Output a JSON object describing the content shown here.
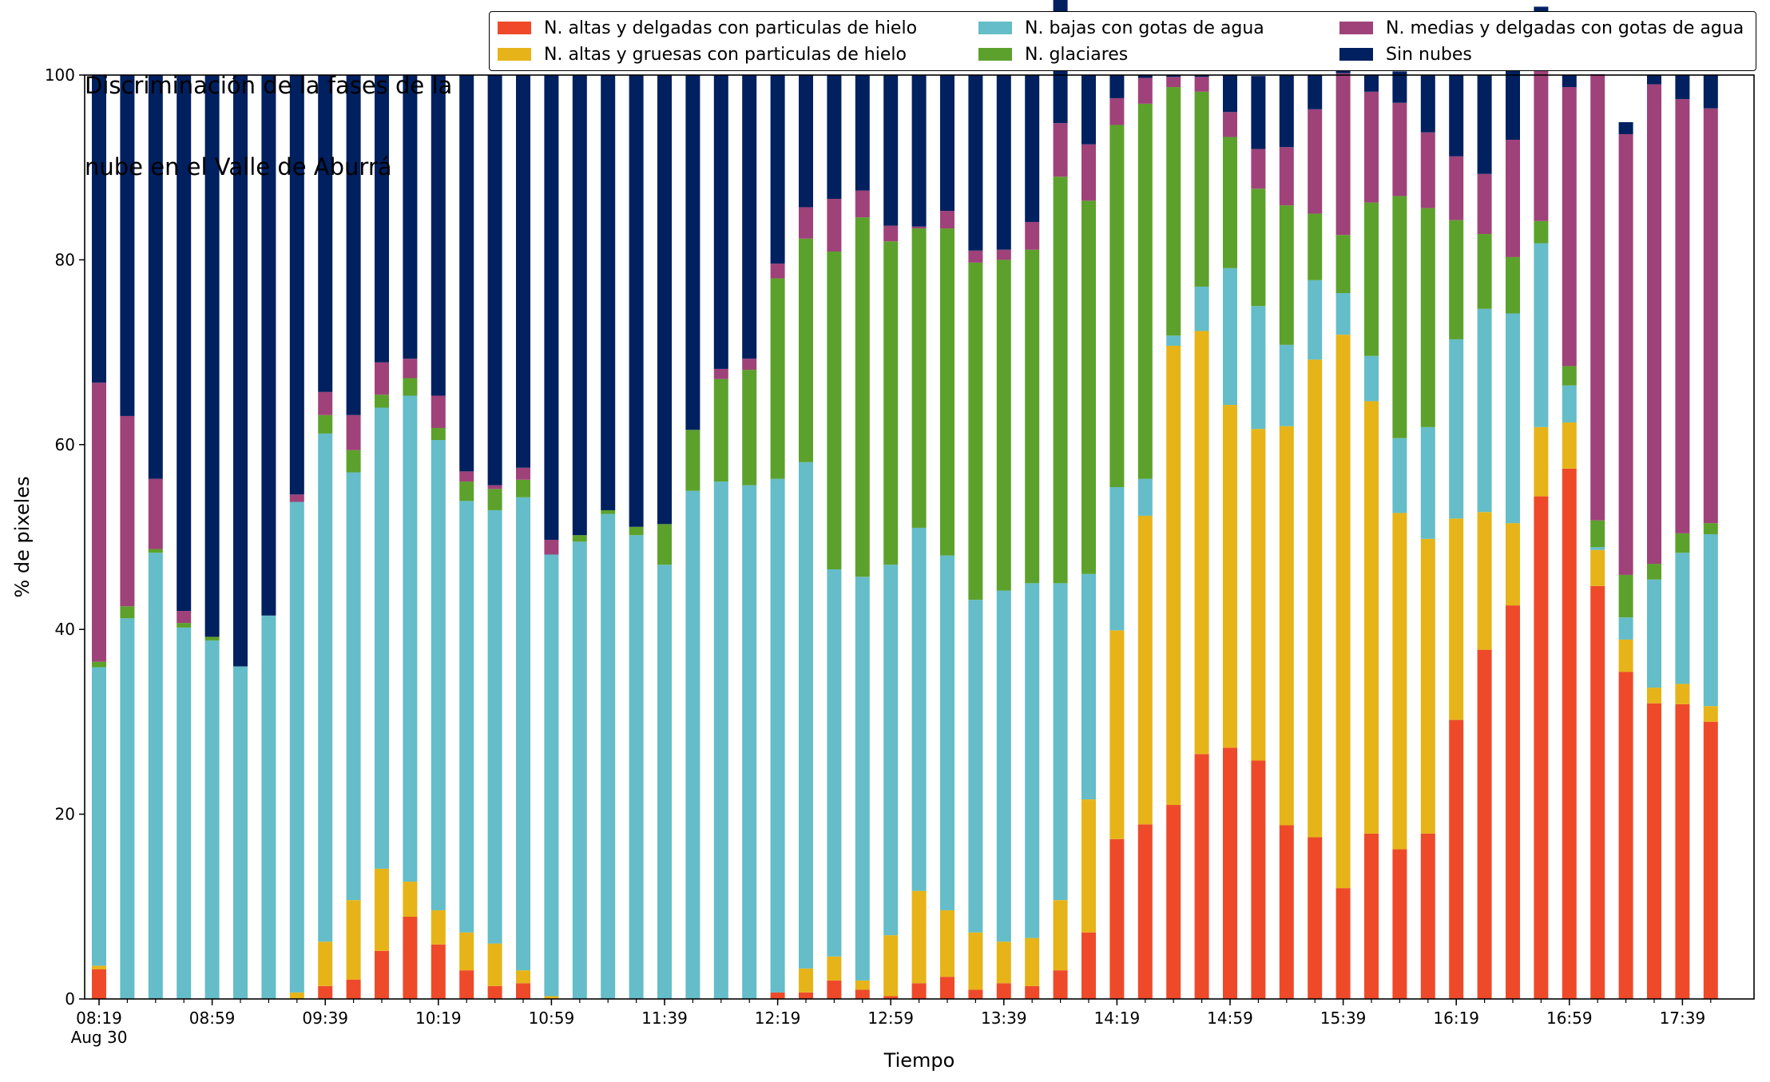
{
  "chart_data": {
    "type": "bar",
    "stacked": true,
    "title": [
      "Discriminación de la fases de la",
      "nube en el Valle de Aburrá"
    ],
    "xlabel": "Tiempo",
    "ylabel": "% de pixeles",
    "ylim": [
      0,
      100
    ],
    "yticks": [
      0,
      20,
      40,
      60,
      80,
      100
    ],
    "xticks": [
      {
        "index": 0,
        "label": "08:19",
        "sublabel": "Aug 30"
      },
      {
        "index": 4,
        "label": "08:59"
      },
      {
        "index": 8,
        "label": "09:39"
      },
      {
        "index": 12,
        "label": "10:19"
      },
      {
        "index": 16,
        "label": "10:59"
      },
      {
        "index": 20,
        "label": "11:39"
      },
      {
        "index": 24,
        "label": "12:19"
      },
      {
        "index": 28,
        "label": "12:59"
      },
      {
        "index": 32,
        "label": "13:39"
      },
      {
        "index": 36,
        "label": "14:19"
      },
      {
        "index": 40,
        "label": "14:59"
      },
      {
        "index": 44,
        "label": "15:39"
      },
      {
        "index": 48,
        "label": "16:19"
      },
      {
        "index": 52,
        "label": "16:59"
      },
      {
        "index": 56,
        "label": "17:39"
      }
    ],
    "legend_position": "top-right",
    "legend_order": [
      0,
      1,
      2,
      3,
      4,
      5
    ],
    "series": [
      {
        "name": "N. altas y delgadas con particulas de hielo",
        "color": "#ee4a2a",
        "values": [
          3.2,
          0,
          0,
          0,
          0,
          0,
          0,
          0,
          1.4,
          2.1,
          5.2,
          8.9,
          5.9,
          3.1,
          1.4,
          1.7,
          0,
          0,
          0,
          0,
          0,
          0,
          0,
          0,
          0.7,
          0.7,
          2,
          1,
          0.3,
          1.7,
          2.4,
          1,
          1.7,
          1.4,
          3.1,
          7.2,
          17.3,
          18.9,
          21,
          26.5,
          27.2,
          25.8,
          18.8,
          17.5,
          12,
          17.9,
          16.2,
          17.9,
          30.2,
          37.8,
          42.6,
          54.4,
          57.4,
          44.7,
          35.4,
          32,
          31.9,
          30
        ]
      },
      {
        "name": "N. altas y gruesas con particulas de hielo",
        "color": "#e6b418",
        "values": [
          0.4,
          0,
          0,
          0,
          0,
          0,
          0,
          0.7,
          4.8,
          8.6,
          8.9,
          3.8,
          3.7,
          4.1,
          4.6,
          1.4,
          0.3,
          0,
          0,
          0,
          0,
          0,
          0,
          0,
          0,
          2.6,
          2.6,
          1,
          6.6,
          10,
          7.2,
          6.2,
          4.5,
          5.2,
          7.6,
          14.4,
          22.6,
          33.4,
          49.7,
          45.8,
          37.1,
          35.9,
          43.2,
          51.7,
          59.9,
          46.8,
          36.4,
          31.9,
          21.8,
          14.9,
          8.9,
          7.5,
          5.0,
          3.9,
          3.5,
          1.7,
          2.2,
          1.7
        ]
      },
      {
        "name": "N. bajas con gotas de agua",
        "color": "#64bdc8",
        "values": [
          32.3,
          41.2,
          48.3,
          40.2,
          38.8,
          36,
          41.5,
          53.1,
          55,
          46.3,
          49.9,
          52.6,
          50.9,
          46.7,
          46.9,
          51.2,
          47.8,
          49.5,
          52.5,
          50.2,
          47,
          55,
          56,
          55.6,
          55.6,
          54.8,
          41.9,
          43.7,
          40.1,
          39.3,
          38.4,
          36,
          38,
          38.4,
          34.3,
          24.4,
          15.5,
          4.0,
          1.1,
          4.8,
          14.8,
          13.3,
          8.8,
          8.6,
          4.5,
          4.9,
          8.1,
          12.1,
          19.4,
          22,
          22.7,
          19.9,
          4.0,
          0.3,
          2.4,
          11.7,
          14.2,
          18.6
        ]
      },
      {
        "name": "N. glaciares",
        "color": "#5ca12c",
        "values": [
          0.6,
          1.3,
          0.4,
          0.5,
          0.4,
          0,
          0,
          0,
          2,
          2.4,
          1.4,
          1.9,
          1.3,
          2.1,
          2.3,
          1.9,
          0,
          0.7,
          0.4,
          0.9,
          4.4,
          6.6,
          11.1,
          12.5,
          21.7,
          24.2,
          34.4,
          38.9,
          35,
          32.4,
          35.4,
          36.5,
          35.8,
          36.1,
          44,
          40.4,
          39.2,
          40.6,
          26.9,
          21.1,
          14.2,
          12.7,
          15.1,
          7.2,
          6.3,
          16.6,
          26.2,
          23.7,
          12.9,
          8.1,
          6.1,
          2.4,
          2.1,
          2.9,
          4.6,
          1.7,
          2.1,
          1.2
        ]
      },
      {
        "name": "N. medias y delgadas con gotas de agua",
        "color": "#9f4279",
        "values": [
          30.2,
          20.6,
          7.6,
          1.3,
          0,
          0,
          0,
          0.8,
          2.5,
          3.8,
          3.5,
          2.1,
          3.5,
          1.1,
          0.4,
          1.3,
          1.6,
          0,
          0,
          0,
          0,
          0,
          1.1,
          1.2,
          1.6,
          3.4,
          5.7,
          2.9,
          1.7,
          0.2,
          1.9,
          1.3,
          1.1,
          3,
          5.8,
          6.1,
          2.9,
          2.8,
          1.1,
          1.6,
          2.7,
          4.3,
          6.3,
          11.3,
          17.5,
          12.0,
          10.1,
          8.2,
          6.9,
          6.5,
          12.7,
          17.9,
          30.2,
          48.3,
          47.7,
          51.9,
          47.0,
          44.9
        ]
      },
      {
        "name": "Sin nubes",
        "color": "#00205f",
        "values": [
          33.3,
          36.9,
          43.7,
          58,
          60.8,
          64,
          58.5,
          45.4,
          34.3,
          36.8,
          31.1,
          30.7,
          34.7,
          42.9,
          44.4,
          42.5,
          50.3,
          49.8,
          47.1,
          48.9,
          48.6,
          38.4,
          31.8,
          30.7,
          20.4,
          14.3,
          13.4,
          12.5,
          16.3,
          16.4,
          14.7,
          19,
          18.9,
          15.9,
          14.8,
          7.5,
          2.5,
          0.3,
          0.2,
          0.2,
          4.0,
          7.9,
          7.8,
          3.7,
          0.3,
          1.8,
          3.4,
          6.2,
          8.8,
          10.7,
          7.9,
          5.3,
          1.3,
          0,
          1.3,
          1.0,
          2.6,
          3.6
        ]
      }
    ]
  }
}
